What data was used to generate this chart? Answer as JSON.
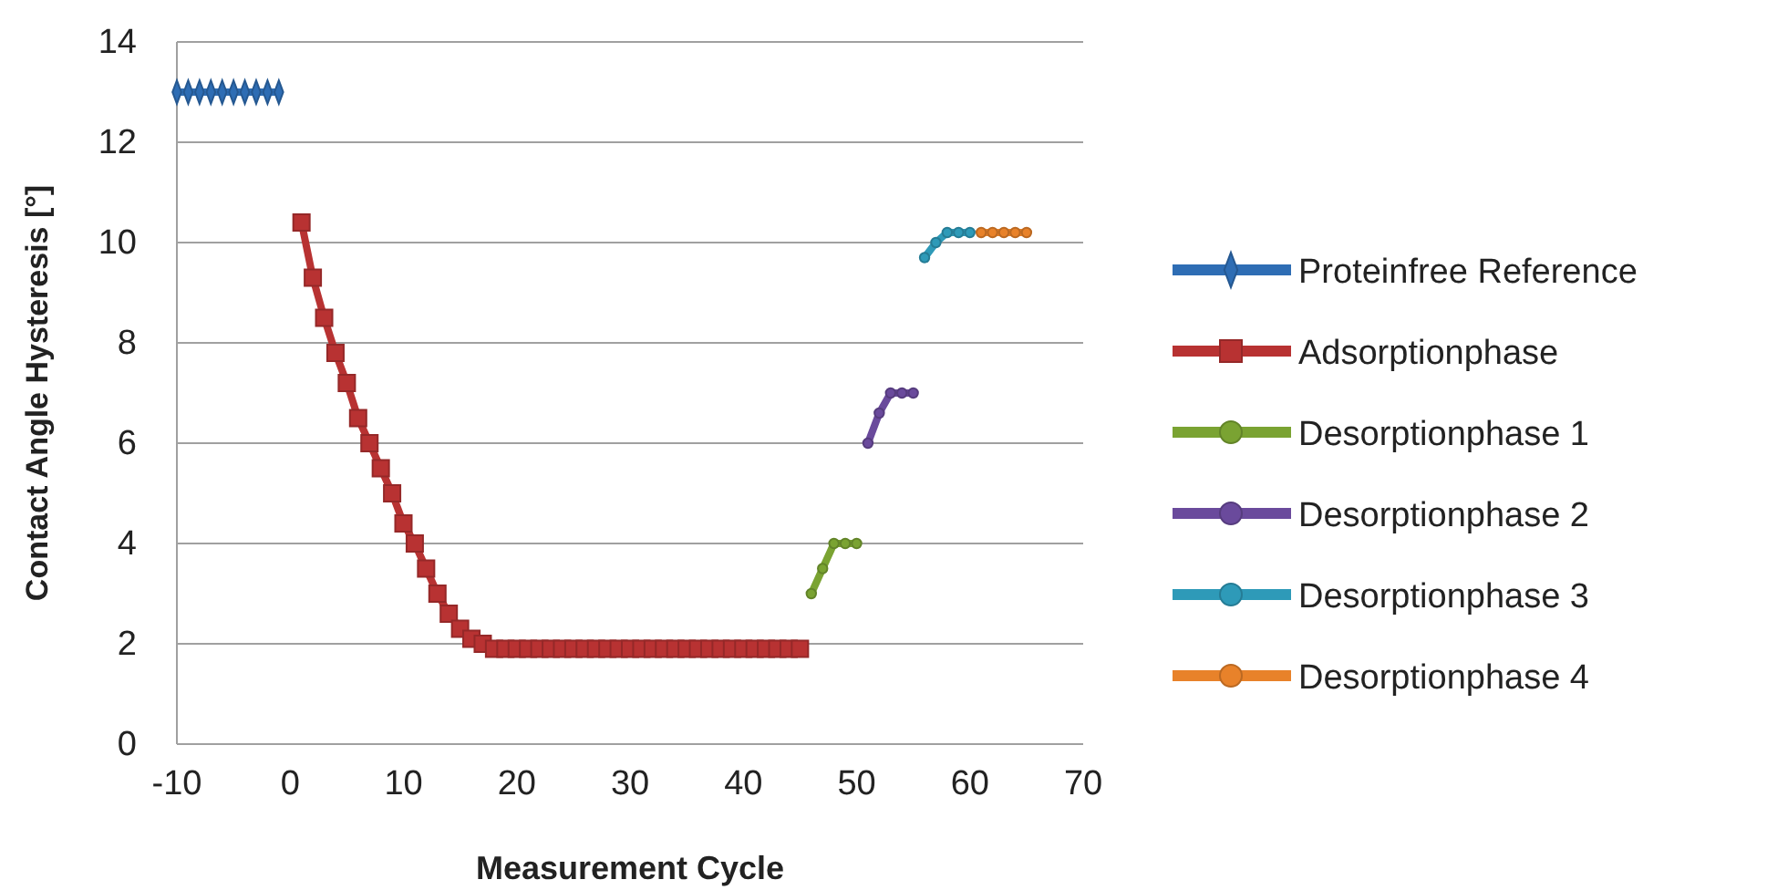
{
  "chart_data": {
    "type": "line",
    "xlabel": "Measurement Cycle",
    "ylabel": "Contact Angle Hysteresis [°]",
    "xlim": [
      -10,
      70
    ],
    "xticks": [
      -10,
      0,
      10,
      20,
      30,
      40,
      50,
      60,
      70
    ],
    "ylim": [
      0,
      14
    ],
    "yticks": [
      0,
      2,
      4,
      6,
      8,
      10,
      12,
      14
    ],
    "grid": "y",
    "legend": "right",
    "series": [
      {
        "name": "Proteinfree Reference",
        "color": "#2e6db4",
        "marker": "diamond",
        "x": [
          -10,
          -9,
          -8,
          -7,
          -6,
          -5,
          -4,
          -3,
          -2,
          -1
        ],
        "values": [
          13,
          13,
          13,
          13,
          13,
          13,
          13,
          13,
          13,
          13
        ]
      },
      {
        "name": "Adsorptionphase",
        "color": "#b83232",
        "marker": "square",
        "x": [
          1,
          2,
          3,
          4,
          5,
          6,
          7,
          8,
          9,
          10,
          11,
          12,
          13,
          14,
          15,
          16,
          17,
          18,
          19,
          20,
          21,
          22,
          23,
          24,
          25,
          26,
          27,
          28,
          29,
          30,
          31,
          32,
          33,
          34,
          35,
          36,
          37,
          38,
          39,
          40,
          41,
          42,
          43,
          44,
          45
        ],
        "values": [
          10.4,
          9.3,
          8.5,
          7.8,
          7.2,
          6.5,
          6.0,
          5.5,
          5.0,
          4.4,
          4.0,
          3.5,
          3.0,
          2.6,
          2.3,
          2.1,
          2.0,
          1.9,
          1.9,
          1.9,
          1.9,
          1.9,
          1.9,
          1.9,
          1.9,
          1.9,
          1.9,
          1.9,
          1.9,
          1.9,
          1.9,
          1.9,
          1.9,
          1.9,
          1.9,
          1.9,
          1.9,
          1.9,
          1.9,
          1.9,
          1.9,
          1.9,
          1.9,
          1.9,
          1.9
        ]
      },
      {
        "name": "Desorptionphase 1",
        "color": "#7aa332",
        "marker": "circle",
        "x": [
          46,
          47,
          48,
          49,
          50
        ],
        "values": [
          3.0,
          3.5,
          4.0,
          4.0,
          4.0
        ]
      },
      {
        "name": "Desorptionphase 2",
        "color": "#6a4a9c",
        "marker": "circle",
        "x": [
          51,
          52,
          53,
          54,
          55
        ],
        "values": [
          6.0,
          6.6,
          7.0,
          7.0,
          7.0
        ]
      },
      {
        "name": "Desorptionphase 3",
        "color": "#2e9ab8",
        "marker": "circle",
        "x": [
          56,
          57,
          58,
          59,
          60
        ],
        "values": [
          9.7,
          10.0,
          10.2,
          10.2,
          10.2
        ]
      },
      {
        "name": "Desorptionphase 4",
        "color": "#e8822a",
        "marker": "circle",
        "x": [
          61,
          62,
          63,
          64,
          65
        ],
        "values": [
          10.2,
          10.2,
          10.2,
          10.2,
          10.2
        ]
      }
    ]
  }
}
